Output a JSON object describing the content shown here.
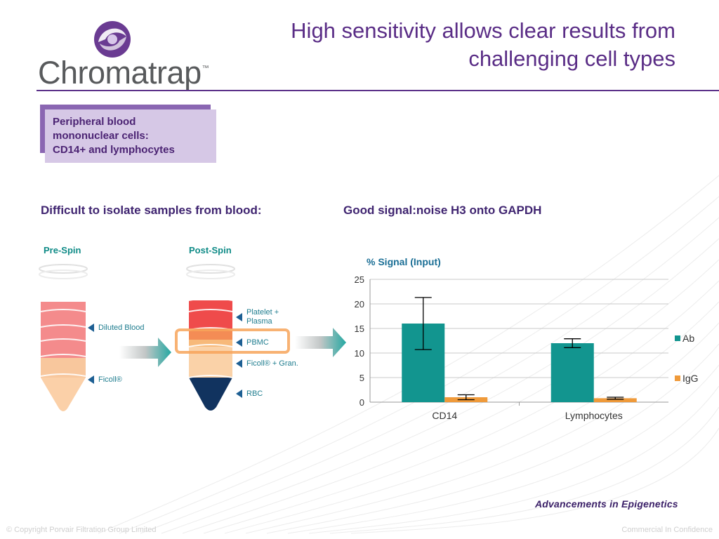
{
  "header": {
    "logo_text": "Chromatrap",
    "logo_tm": "™",
    "title_line1": "High sensitivity allows clear results from",
    "title_line2": "challenging cell types"
  },
  "callout": {
    "line1": "Peripheral blood",
    "line2": "mononuclear cells:",
    "line3": "CD14+ and lymphocytes"
  },
  "left_section": {
    "heading": "Difficult to isolate samples from blood:",
    "pre_spin": {
      "label": "Pre-Spin",
      "annotations": [
        "Diluted Blood",
        "Ficoll®"
      ]
    },
    "post_spin": {
      "label": "Post-Spin",
      "annotations": [
        "Platelet +",
        "Plasma",
        "PBMC",
        "Ficoll® + Gran.",
        "RBC"
      ]
    }
  },
  "right_section": {
    "heading": "Good signal:noise H3 onto GAPDH"
  },
  "colors": {
    "title": "#5a2d86",
    "ab": "#12958f",
    "igg": "#ef9a3a",
    "teal_text": "#0f8b87"
  },
  "chart_data": {
    "type": "bar",
    "title": "% Signal (Input)",
    "xlabel": "",
    "ylabel": "",
    "categories": [
      "CD14",
      "Lymphocytes"
    ],
    "series": [
      {
        "name": "Ab",
        "values": [
          16.0,
          12.0
        ],
        "error": [
          5.3,
          0.9
        ]
      },
      {
        "name": "IgG",
        "values": [
          1.0,
          0.8
        ],
        "error": [
          0.5,
          0.2
        ]
      }
    ],
    "ylim": [
      0,
      25
    ],
    "yticks": [
      0,
      5,
      10,
      15,
      20,
      25
    ],
    "grid": true,
    "legend": "right"
  },
  "footer": {
    "tagline": "Advancements in Epigenetics",
    "copyright": "© Copyright Porvair Filtration Group Limited",
    "confidential": "Commercial In Confidence"
  }
}
